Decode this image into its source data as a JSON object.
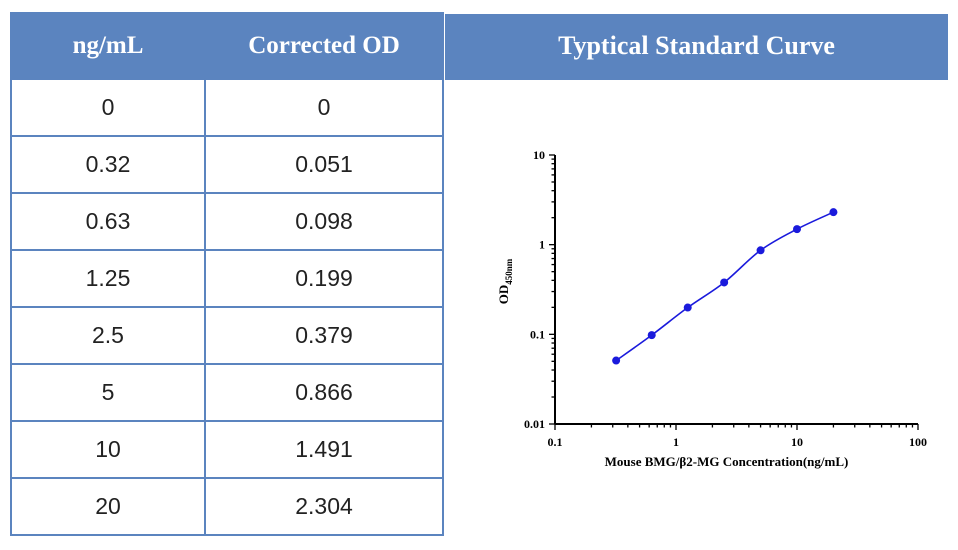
{
  "table": {
    "headers": [
      "ng/mL",
      "Corrected OD"
    ],
    "rows": [
      [
        "0",
        "0"
      ],
      [
        "0.32",
        "0.051"
      ],
      [
        "0.63",
        "0.098"
      ],
      [
        "1.25",
        "0.199"
      ],
      [
        "2.5",
        "0.379"
      ],
      [
        "5",
        "0.866"
      ],
      [
        "10",
        "1.491"
      ],
      [
        "20",
        "2.304"
      ]
    ]
  },
  "colors": {
    "header_bg": "#5b84bf",
    "series": "#1a1adc"
  },
  "chart_data": {
    "type": "line",
    "title": "Typtical Standard Curve",
    "xlabel": "Mouse BMG/β2-MG Concentration(ng/mL)",
    "ylabel_main": "OD",
    "ylabel_sub": "450nm",
    "xscale": "log",
    "yscale": "log",
    "xlim": [
      0.1,
      100
    ],
    "ylim": [
      0.01,
      10
    ],
    "x_tick_labels": [
      "0.1",
      "1",
      "10",
      "100"
    ],
    "y_tick_labels": [
      "0.01",
      "0.1",
      "1",
      "10"
    ],
    "x_tick_values": [
      0.1,
      1,
      10,
      100
    ],
    "y_tick_values": [
      0.01,
      0.1,
      1,
      10
    ],
    "series": [
      {
        "x": [
          0.32,
          0.63,
          1.25,
          2.5,
          5,
          10,
          20
        ],
        "y": [
          0.051,
          0.098,
          0.199,
          0.379,
          0.866,
          1.491,
          2.304
        ]
      }
    ],
    "grid": false,
    "legend": "none"
  }
}
